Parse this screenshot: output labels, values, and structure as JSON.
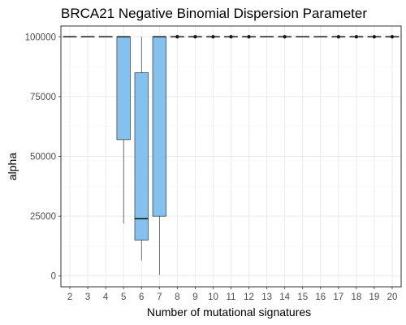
{
  "chart_data": {
    "type": "box",
    "title": "BRCA21 Negative Binomial Dispersion Parameter",
    "xlabel": "Number of mutational signatures",
    "ylabel": "alpha",
    "categories": [
      "2",
      "3",
      "4",
      "5",
      "6",
      "7",
      "8",
      "9",
      "10",
      "11",
      "12",
      "13",
      "14",
      "15",
      "16",
      "17",
      "18",
      "19",
      "20"
    ],
    "ylim": [
      -4500,
      104500
    ],
    "yticks": [
      0,
      25000,
      50000,
      75000,
      100000
    ],
    "ytick_labels": [
      "0",
      "25000",
      "50000",
      "75000",
      "100000"
    ],
    "grid": true,
    "boxes": [
      {
        "x": "2",
        "min": 100000,
        "q1": 100000,
        "median": 100000,
        "q3": 100000,
        "max": 100000,
        "outliers": []
      },
      {
        "x": "3",
        "min": 100000,
        "q1": 100000,
        "median": 100000,
        "q3": 100000,
        "max": 100000,
        "outliers": []
      },
      {
        "x": "4",
        "min": 100000,
        "q1": 100000,
        "median": 100000,
        "q3": 100000,
        "max": 100000,
        "outliers": []
      },
      {
        "x": "5",
        "min": 22000,
        "q1": 57000,
        "median": 100000,
        "q3": 100000,
        "max": 100000,
        "outliers": []
      },
      {
        "x": "6",
        "min": 6500,
        "q1": 15000,
        "median": 24000,
        "q3": 85000,
        "max": 100000,
        "outliers": []
      },
      {
        "x": "7",
        "min": 500,
        "q1": 25000,
        "median": 100000,
        "q3": 100000,
        "max": 100000,
        "outliers": []
      },
      {
        "x": "8",
        "min": 100000,
        "q1": 100000,
        "median": 100000,
        "q3": 100000,
        "max": 100000,
        "outliers": [
          100000
        ]
      },
      {
        "x": "9",
        "min": 100000,
        "q1": 100000,
        "median": 100000,
        "q3": 100000,
        "max": 100000,
        "outliers": [
          100000
        ]
      },
      {
        "x": "10",
        "min": 100000,
        "q1": 100000,
        "median": 100000,
        "q3": 100000,
        "max": 100000,
        "outliers": [
          100000
        ]
      },
      {
        "x": "11",
        "min": 100000,
        "q1": 100000,
        "median": 100000,
        "q3": 100000,
        "max": 100000,
        "outliers": [
          100000
        ]
      },
      {
        "x": "12",
        "min": 100000,
        "q1": 100000,
        "median": 100000,
        "q3": 100000,
        "max": 100000,
        "outliers": [
          100000
        ]
      },
      {
        "x": "13",
        "min": 100000,
        "q1": 100000,
        "median": 100000,
        "q3": 100000,
        "max": 100000,
        "outliers": []
      },
      {
        "x": "14",
        "min": 100000,
        "q1": 100000,
        "median": 100000,
        "q3": 100000,
        "max": 100000,
        "outliers": [
          100000
        ]
      },
      {
        "x": "15",
        "min": 100000,
        "q1": 100000,
        "median": 100000,
        "q3": 100000,
        "max": 100000,
        "outliers": []
      },
      {
        "x": "16",
        "min": 100000,
        "q1": 100000,
        "median": 100000,
        "q3": 100000,
        "max": 100000,
        "outliers": []
      },
      {
        "x": "17",
        "min": 100000,
        "q1": 100000,
        "median": 100000,
        "q3": 100000,
        "max": 100000,
        "outliers": [
          100000
        ]
      },
      {
        "x": "18",
        "min": 100000,
        "q1": 100000,
        "median": 100000,
        "q3": 100000,
        "max": 100000,
        "outliers": [
          100000
        ]
      },
      {
        "x": "19",
        "min": 100000,
        "q1": 100000,
        "median": 100000,
        "q3": 100000,
        "max": 100000,
        "outliers": [
          100000
        ]
      },
      {
        "x": "20",
        "min": 100000,
        "q1": 100000,
        "median": 100000,
        "q3": 100000,
        "max": 100000,
        "outliers": [
          100000
        ]
      }
    ],
    "colors": {
      "box_fill": "#85c1ee",
      "box_stroke": "#1a1a1a",
      "grid_major": "#ebebeb",
      "grid_minor": "#f5f5f5",
      "panel_border": "#333333",
      "tick_text": "#4d4d4d"
    }
  }
}
